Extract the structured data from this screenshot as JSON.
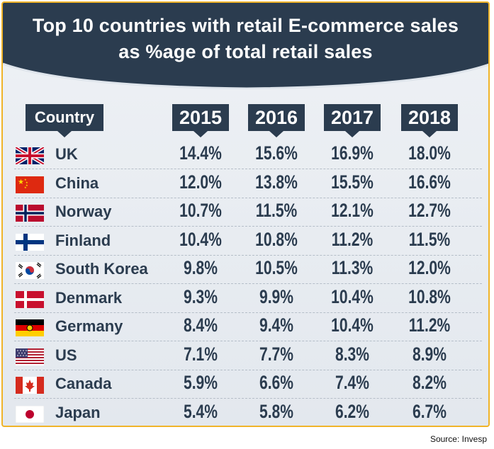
{
  "chart_data": {
    "type": "table",
    "title_lines": [
      "Top 10 countries with retail E-commerce sales",
      "as %age of total retail sales"
    ],
    "column_header": "Country",
    "years": [
      "2015",
      "2016",
      "2017",
      "2018"
    ],
    "rows": [
      {
        "flag": "uk-flag-icon",
        "country": "UK",
        "values": [
          "14.4%",
          "15.6%",
          "16.9%",
          "18.0%"
        ]
      },
      {
        "flag": "china-flag-icon",
        "country": "China",
        "values": [
          "12.0%",
          "13.8%",
          "15.5%",
          "16.6%"
        ]
      },
      {
        "flag": "norway-flag-icon",
        "country": "Norway",
        "values": [
          "10.7%",
          "11.5%",
          "12.1%",
          "12.7%"
        ]
      },
      {
        "flag": "finland-flag-icon",
        "country": "Finland",
        "values": [
          "10.4%",
          "10.8%",
          "11.2%",
          "11.5%"
        ]
      },
      {
        "flag": "south-korea-flag-icon",
        "country": "South Korea",
        "values": [
          "9.8%",
          "10.5%",
          "11.3%",
          "12.0%"
        ]
      },
      {
        "flag": "denmark-flag-icon",
        "country": "Denmark",
        "values": [
          "9.3%",
          "9.9%",
          "10.4%",
          "10.8%"
        ]
      },
      {
        "flag": "germany-flag-icon",
        "country": "Germany",
        "values": [
          "8.4%",
          "9.4%",
          "10.4%",
          "11.2%"
        ]
      },
      {
        "flag": "us-flag-icon",
        "country": "US",
        "values": [
          "7.1%",
          "7.7%",
          "8.3%",
          "8.9%"
        ]
      },
      {
        "flag": "canada-flag-icon",
        "country": "Canada",
        "values": [
          "5.9%",
          "6.6%",
          "7.4%",
          "8.2%"
        ]
      },
      {
        "flag": "japan-flag-icon",
        "country": "Japan",
        "values": [
          "5.4%",
          "5.8%",
          "6.2%",
          "6.7%"
        ]
      }
    ]
  },
  "source": "Source: Invesp",
  "colors": {
    "banner": "#2b3c4f",
    "border": "#f0b429",
    "text": "#2b3c4f",
    "background": "#e9edf2"
  }
}
